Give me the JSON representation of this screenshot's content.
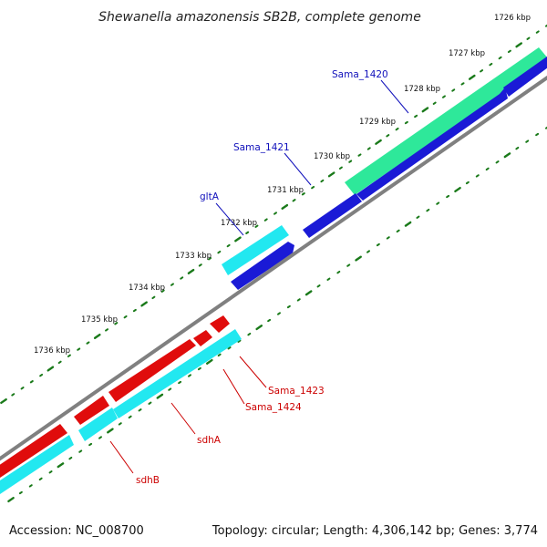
{
  "title": "Shewanella amazonensis SB2B, complete genome",
  "footer": {
    "accession": "Accession: NC_008700",
    "summary": "Topology: circular; Length: 4,306,142 bp; Genes: 3,774"
  },
  "colors": {
    "backbone": "#808080",
    "tick": "#1a7a1a",
    "forward_label": "#1010bb",
    "reverse_label": "#cc0000",
    "feature_green": "#2ee89a",
    "feature_blue": "#1a1ad6",
    "feature_cyan": "#22e8f0",
    "feature_red": "#e00c0c"
  },
  "map": {
    "unit": "kbp",
    "visible_range_kbp": [
      1725.5,
      1737
    ],
    "tick_labels": [
      {
        "kbp": 1726,
        "text": "1726 kbp"
      },
      {
        "kbp": 1727,
        "text": "1727 kbp"
      },
      {
        "kbp": 1728,
        "text": "1728 kbp"
      },
      {
        "kbp": 1729,
        "text": "1729 kbp"
      },
      {
        "kbp": 1730,
        "text": "1730 kbp"
      },
      {
        "kbp": 1731,
        "text": "1731 kbp"
      },
      {
        "kbp": 1732,
        "text": "1732 kbp"
      },
      {
        "kbp": 1733,
        "text": "1733 kbp"
      },
      {
        "kbp": 1734,
        "text": "1734 kbp"
      },
      {
        "kbp": 1735,
        "text": "1735 kbp"
      },
      {
        "kbp": 1736,
        "text": "1736 kbp"
      }
    ],
    "features": [
      {
        "name": "Sama_1420",
        "strand": "forward",
        "track": "outer",
        "color": "feature_green",
        "label_color": "forward_label"
      },
      {
        "name": "Sama_1420",
        "strand": "forward",
        "track": "inner",
        "color": "feature_blue",
        "label_color": "forward_label"
      },
      {
        "name": "Sama_1421",
        "strand": "forward",
        "track": "inner",
        "color": "feature_blue",
        "label_color": "forward_label"
      },
      {
        "name": "gltA",
        "strand": "forward",
        "track": "outer",
        "color": "feature_cyan",
        "label_color": "forward_label"
      },
      {
        "name": "gltA",
        "strand": "forward",
        "track": "inner",
        "color": "feature_blue",
        "label_color": "forward_label"
      },
      {
        "name": "Sama_1423",
        "strand": "reverse",
        "track": "outer",
        "color": "feature_red",
        "label_color": "reverse_label"
      },
      {
        "name": "Sama_1424",
        "strand": "reverse",
        "track": "outer",
        "color": "feature_red",
        "label_color": "reverse_label"
      },
      {
        "name": "sdhA",
        "strand": "reverse",
        "track": "outer",
        "color": "feature_red",
        "label_color": "reverse_label"
      },
      {
        "name": "sdhA",
        "strand": "reverse",
        "track": "inner",
        "color": "feature_cyan",
        "label_color": "reverse_label"
      },
      {
        "name": "sdhB",
        "strand": "reverse",
        "track": "outer",
        "color": "feature_red",
        "label_color": "reverse_label"
      },
      {
        "name": "sdhB",
        "strand": "reverse",
        "track": "inner",
        "color": "feature_cyan",
        "label_color": "reverse_label"
      }
    ],
    "labels": [
      {
        "text": "Sama_1420",
        "strand": "forward"
      },
      {
        "text": "Sama_1421",
        "strand": "forward"
      },
      {
        "text": "gltA",
        "strand": "forward"
      },
      {
        "text": "Sama_1423",
        "strand": "reverse"
      },
      {
        "text": "Sama_1424",
        "strand": "reverse"
      },
      {
        "text": "sdhA",
        "strand": "reverse"
      },
      {
        "text": "sdhB",
        "strand": "reverse"
      }
    ]
  }
}
